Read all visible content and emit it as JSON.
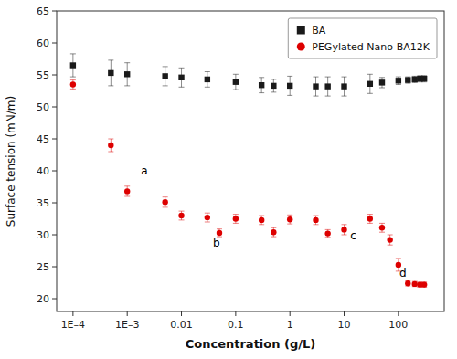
{
  "chart_data": {
    "type": "scatter",
    "xlabel": "Concentration (g/L)",
    "ylabel": "Surface tension (mN/m)",
    "log": "x",
    "grid": false,
    "legend": "upper right",
    "xlim": [
      5e-05,
      700
    ],
    "ylim": [
      18,
      65
    ],
    "xticks": [
      {
        "value": 0.0001,
        "label": "1E–4"
      },
      {
        "value": 0.001,
        "label": "1E–3"
      },
      0.01,
      0.1,
      1,
      10,
      100
    ],
    "yticks": [
      20,
      25,
      30,
      35,
      40,
      45,
      50,
      55,
      60,
      65
    ],
    "series": [
      {
        "name": "BA",
        "color": "#1a1a1a",
        "marker": "square",
        "x": [
          0.0001,
          0.0005,
          0.001,
          0.005,
          0.01,
          0.03,
          0.1,
          0.3,
          0.5,
          1,
          3,
          5,
          10,
          30,
          50,
          100,
          150,
          200,
          250,
          300
        ],
        "values": [
          56.5,
          55.3,
          55.1,
          54.8,
          54.6,
          54.3,
          53.9,
          53.4,
          53.3,
          53.3,
          53.2,
          53.2,
          53.2,
          53.6,
          53.8,
          54.1,
          54.2,
          54.3,
          54.4,
          54.4
        ],
        "yerr": [
          1.8,
          2.0,
          1.8,
          1.5,
          1.5,
          1.2,
          1.2,
          1.2,
          1.0,
          1.5,
          1.5,
          1.5,
          1.5,
          1.5,
          0.8,
          0.6,
          0.5,
          0.5,
          0.5,
          0.5
        ]
      },
      {
        "name": "PEGylated Nano-BA12K",
        "color": "#dd0000",
        "marker": "circle",
        "x": [
          0.0001,
          0.0005,
          0.001,
          0.005,
          0.01,
          0.03,
          0.05,
          0.1,
          0.3,
          0.5,
          1,
          3,
          5,
          10,
          30,
          50,
          70,
          100,
          150,
          200,
          250,
          300
        ],
        "values": [
          53.5,
          44.0,
          36.8,
          35.1,
          33.0,
          32.7,
          30.3,
          32.5,
          32.3,
          30.4,
          32.4,
          32.3,
          30.2,
          30.8,
          32.5,
          31.1,
          29.2,
          25.3,
          22.4,
          22.3,
          22.2,
          22.2
        ],
        "yerr": [
          0.7,
          1.0,
          0.8,
          0.8,
          0.7,
          0.7,
          0.6,
          0.7,
          0.7,
          0.7,
          0.7,
          0.7,
          0.6,
          0.8,
          0.7,
          0.7,
          0.8,
          1.0,
          0.4,
          0.4,
          0.4,
          0.4
        ]
      }
    ],
    "annotations": [
      {
        "text": "a",
        "x": 0.0018,
        "y": 39.5
      },
      {
        "text": "b",
        "x": 0.038,
        "y": 28.2
      },
      {
        "text": "c",
        "x": 13,
        "y": 29.3
      },
      {
        "text": "d",
        "x": 105,
        "y": 23.5
      }
    ]
  }
}
